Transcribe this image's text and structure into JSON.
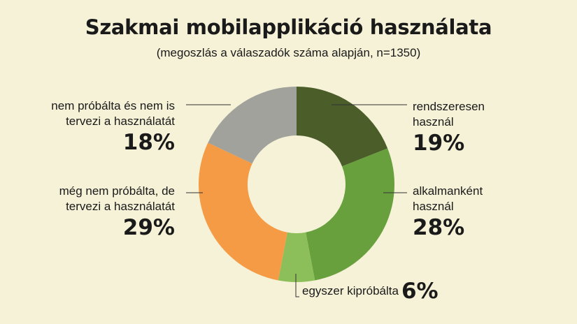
{
  "chart_data": {
    "type": "pie",
    "donut": true,
    "title": "Szakmai mobilapplikáció használata",
    "subtitle": "(megoszlás a válaszadók száma alapján, n=1350)",
    "slices": [
      {
        "label": "rendszeresen használ",
        "value": 19,
        "display": "19%",
        "color": "#4b5e2a"
      },
      {
        "label": "alkalmanként használ",
        "value": 28,
        "display": "28%",
        "color": "#67a03c"
      },
      {
        "label": "egyszer kipróbálta",
        "value": 6,
        "display": "6%",
        "color": "#8cbf5a"
      },
      {
        "label": "még nem próbálta, de tervezi a használatát",
        "value": 29,
        "display": "29%",
        "color": "#f59a45"
      },
      {
        "label": "nem próbálta és nem is tervezi a használatát",
        "value": 18,
        "display": "18%",
        "color": "#a2a29c"
      }
    ]
  }
}
